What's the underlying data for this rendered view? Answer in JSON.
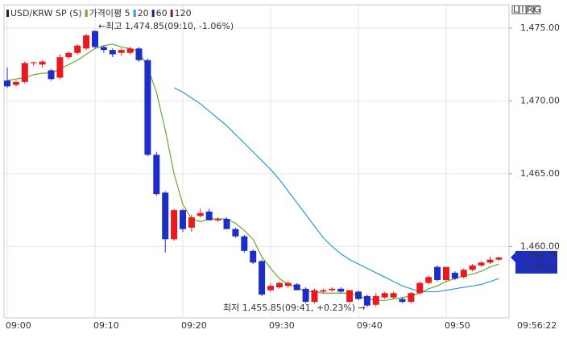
{
  "chart_data": {
    "type": "candlestick",
    "categories": [
      "09:00",
      null,
      null,
      null,
      null,
      null,
      null,
      null,
      null,
      null,
      "09:10",
      null,
      null,
      null,
      null,
      null,
      null,
      null,
      null,
      null,
      "09:20",
      null,
      null,
      null,
      null,
      null,
      null,
      null,
      null,
      null,
      "09:30",
      null,
      null,
      null,
      null,
      null,
      null,
      null,
      null,
      null,
      "09:40",
      null,
      null,
      null,
      null,
      null,
      null,
      null,
      null,
      null,
      "09:50",
      null,
      null,
      null,
      null,
      null,
      null
    ],
    "current_time": "09:56:22",
    "ylim": [
      1455.1,
      1476.6
    ],
    "yticks": [
      {
        "value": 1460,
        "label": "1,460.00"
      },
      {
        "value": 1465,
        "label": "1,465.00"
      },
      {
        "value": 1470,
        "label": "1,470.00"
      },
      {
        "value": 1475,
        "label": "1,475.00"
      }
    ],
    "grid": true,
    "up_color": "#e8191f",
    "down_color": "#1d2ec8",
    "series": [
      {
        "name": "USD/KRW SP (S)",
        "color": "#222222",
        "open": [
          1471.4,
          1471.1,
          1471.3,
          1472.6,
          1472.5,
          1472.1,
          1471.6,
          1473.0,
          1473.3,
          1473.6,
          1474.8,
          1473.7,
          1473.5,
          1473.3,
          1473.3,
          1473.6,
          1472.8,
          1466.3,
          1463.7,
          1460.5,
          1462.5,
          1461.3,
          1462.1,
          1462.4,
          1461.8,
          1461.9,
          1461.2,
          1460.7,
          1459.7,
          1459.0,
          1457.0,
          1457.2,
          1457.3,
          1457.4,
          1457.1,
          1456.2,
          1456.9,
          1457.0,
          1457.1,
          1456.2,
          1456.9,
          1456.6,
          1456.0,
          1456.5,
          1456.5,
          1456.4,
          1456.2,
          1456.8,
          1457.5,
          1458.6,
          1457.7,
          1458.2,
          1457.9,
          1458.4,
          1458.7,
          1458.9,
          1459.1
        ],
        "high": [
          1472.3,
          1471.4,
          1472.7,
          1472.7,
          1472.8,
          1472.2,
          1473.2,
          1473.4,
          1473.9,
          1474.6,
          1474.85,
          1473.8,
          1473.6,
          1473.6,
          1473.7,
          1473.7,
          1472.9,
          1466.5,
          1463.8,
          1462.6,
          1462.6,
          1462.2,
          1462.6,
          1462.6,
          1462.0,
          1462.0,
          1461.3,
          1460.8,
          1459.8,
          1459.1,
          1457.5,
          1457.6,
          1457.6,
          1457.5,
          1457.2,
          1457.1,
          1457.1,
          1457.2,
          1457.2,
          1457.0,
          1457.0,
          1456.7,
          1456.8,
          1456.9,
          1456.9,
          1456.5,
          1456.9,
          1457.6,
          1458.0,
          1458.7,
          1458.6,
          1458.3,
          1458.5,
          1458.8,
          1459.0,
          1459.3,
          1459.3
        ],
        "low": [
          1470.9,
          1471.0,
          1471.2,
          1472.4,
          1472.3,
          1471.4,
          1471.5,
          1472.9,
          1473.2,
          1473.5,
          1473.6,
          1473.3,
          1473.0,
          1473.1,
          1473.2,
          1472.7,
          1466.2,
          1463.5,
          1459.6,
          1460.4,
          1461.0,
          1461.0,
          1462.0,
          1461.8,
          1461.7,
          1461.2,
          1460.6,
          1459.6,
          1458.8,
          1456.6,
          1456.9,
          1457.1,
          1457.2,
          1457.0,
          1456.1,
          1456.1,
          1456.8,
          1456.9,
          1456.8,
          1456.1,
          1456.3,
          1455.85,
          1455.9,
          1456.4,
          1456.4,
          1456.1,
          1456.1,
          1456.7,
          1457.4,
          1457.6,
          1457.6,
          1457.7,
          1457.8,
          1458.3,
          1458.6,
          1458.8,
          1459.0
        ],
        "close": [
          1471.0,
          1471.3,
          1472.6,
          1472.65,
          1472.7,
          1471.5,
          1473.0,
          1473.3,
          1473.8,
          1474.5,
          1473.7,
          1473.5,
          1473.2,
          1473.5,
          1473.6,
          1472.8,
          1466.3,
          1463.6,
          1460.5,
          1462.5,
          1461.2,
          1462.0,
          1462.3,
          1461.8,
          1461.9,
          1461.2,
          1460.7,
          1459.7,
          1458.9,
          1456.7,
          1457.3,
          1457.5,
          1457.5,
          1457.0,
          1456.2,
          1457.0,
          1457.0,
          1457.1,
          1456.9,
          1457.0,
          1456.4,
          1455.95,
          1456.6,
          1456.8,
          1456.8,
          1456.2,
          1456.8,
          1457.5,
          1457.9,
          1457.7,
          1458.6,
          1457.8,
          1458.4,
          1458.7,
          1458.9,
          1459.1,
          1459.25
        ]
      }
    ],
    "moving_averages": [
      {
        "name": "가격이평 5",
        "color": "#6aaa2a",
        "values": [
          1471.4,
          1471.5,
          1471.6,
          1471.8,
          1471.9,
          1471.9,
          1472.2,
          1472.5,
          1472.8,
          1473.2,
          1473.6,
          1473.8,
          1473.9,
          1473.7,
          1473.6,
          1473.4,
          1472.3,
          1470.6,
          1468.0,
          1465.0,
          1462.9,
          1461.9,
          1461.7,
          1461.9,
          1461.9,
          1461.9,
          1461.6,
          1461.1,
          1460.5,
          1459.3,
          1458.5,
          1457.8,
          1457.4,
          1457.2,
          1456.9,
          1456.9,
          1456.8,
          1456.8,
          1456.8,
          1456.8,
          1456.6,
          1456.4,
          1456.3,
          1456.3,
          1456.4,
          1456.5,
          1456.6,
          1456.8,
          1457.1,
          1457.3,
          1457.6,
          1457.8,
          1458.0,
          1458.1,
          1458.3,
          1458.6,
          1458.8
        ]
      },
      {
        "name": "20",
        "color": "#2e9ad8",
        "values": [
          null,
          null,
          null,
          null,
          null,
          null,
          null,
          null,
          null,
          null,
          null,
          null,
          null,
          null,
          null,
          null,
          null,
          null,
          null,
          1470.9,
          1470.6,
          1470.2,
          1469.8,
          1469.3,
          1468.8,
          1468.3,
          1467.7,
          1467.1,
          1466.5,
          1465.9,
          1465.3,
          1464.6,
          1463.8,
          1463.0,
          1462.2,
          1461.4,
          1460.6,
          1460.0,
          1459.5,
          1459.1,
          1458.8,
          1458.5,
          1458.2,
          1457.9,
          1457.6,
          1457.3,
          1457.1,
          1456.9,
          1456.9,
          1456.9,
          1457.0,
          1457.1,
          1457.2,
          1457.3,
          1457.4,
          1457.6,
          1457.8
        ]
      },
      {
        "name": "60",
        "color": "#1a237e"
      },
      {
        "name": "120",
        "color": "#8b1a2a"
      }
    ],
    "high_annotation": "←최고 1,474.85(09:10, -1.06%)",
    "low_annotation": "최저 1,455.85(09:41, +0.23%) →",
    "last_price": {
      "value": 1459.25,
      "label": "1,459.25",
      "change": "(-0.46%)"
    },
    "controls": [
      "L",
      "I",
      "R",
      "G"
    ]
  }
}
